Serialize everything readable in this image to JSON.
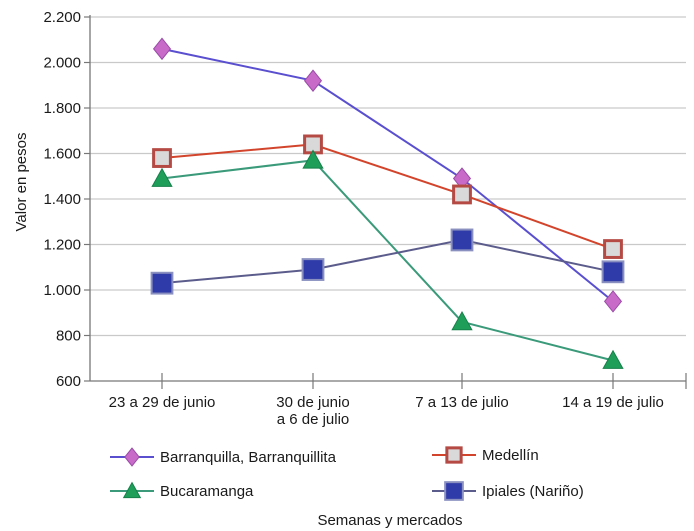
{
  "chart_data": {
    "type": "line",
    "title": "",
    "xlabel": "Semanas y mercados",
    "ylabel": "Valor en pesos",
    "ylim": [
      600,
      2200
    ],
    "yticks": [
      600,
      800,
      1000,
      1200,
      1400,
      1600,
      1800,
      2000,
      2200
    ],
    "ytick_labels": [
      "600",
      "800",
      "1.000",
      "1.200",
      "1.400",
      "1.600",
      "1.800",
      "2.000",
      "2.200"
    ],
    "categories": [
      [
        "23 a 29 de junio"
      ],
      [
        "30 de junio",
        "a 6 de julio"
      ],
      [
        "7 a 13 de julio"
      ],
      [
        "14 a 19 de julio"
      ]
    ],
    "grid": "horizontal",
    "legend_position": "bottom",
    "series": [
      {
        "name": "Barranquilla, Barranquillita",
        "color": "#5a4fcf",
        "marker": "diamond",
        "marker_color": "#c86bc8",
        "values": [
          2060,
          1920,
          1490,
          950
        ]
      },
      {
        "name": "Medellín",
        "color": "#d2452c",
        "marker": "square-outline",
        "marker_color": "#b54a44",
        "values": [
          1580,
          1640,
          1420,
          1180
        ]
      },
      {
        "name": "Bucaramanga",
        "color": "#3a9a7a",
        "marker": "triangle",
        "marker_color": "#1f9e5a",
        "values": [
          1490,
          1570,
          860,
          690
        ]
      },
      {
        "name": "Ipiales (Nariño)",
        "color": "#5c5c8c",
        "marker": "square",
        "marker_color": "#2f3ba8",
        "values": [
          1030,
          1090,
          1220,
          1080
        ]
      }
    ]
  }
}
